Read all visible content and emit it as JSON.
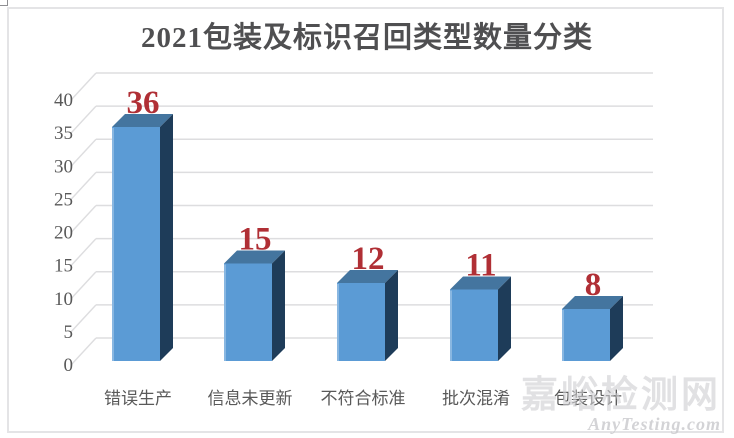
{
  "watermark": {
    "site_name": "嘉峪检测网",
    "domain": "AnyTesting.com"
  },
  "chart_data": {
    "type": "bar",
    "style": "3d-column",
    "title": "2021包装及标识召回类型数量分类",
    "categories": [
      "错误生产",
      "信息未更新",
      "不符合标准",
      "批次混淆",
      "包装设计"
    ],
    "values": [
      36,
      15,
      12,
      11,
      8
    ],
    "xlabel": "",
    "ylabel": "",
    "ylim": [
      0,
      40
    ],
    "yticks": [
      0,
      5,
      10,
      15,
      20,
      25,
      30,
      35,
      40
    ],
    "grid": true,
    "legend": false,
    "colors": {
      "bar_front": "#5B9BD5",
      "bar_top": "#44759F",
      "bar_side": "#1E3C59",
      "bar_highlight": "#9CC3E5",
      "data_label": "#B02F35",
      "axis_text": "#595959",
      "gridline": "#DDDDDF",
      "title_text": "#4F4F51"
    }
  }
}
